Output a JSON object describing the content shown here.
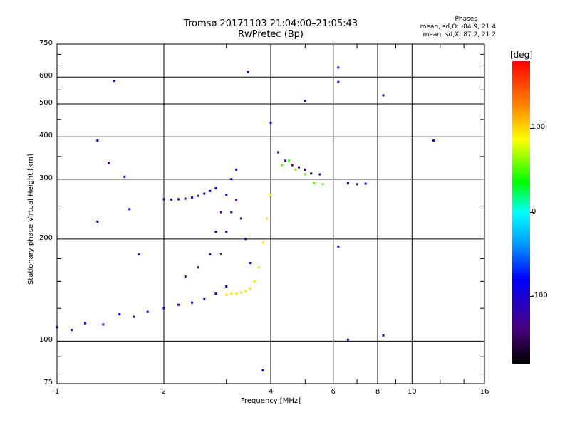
{
  "chart_data": {
    "type": "scatter",
    "title": "Tromsø 20171103 21:04:00–21:05:43",
    "subtitle": "RwPretec (Bp)",
    "xlabel": "Frequency [MHz]",
    "ylabel": "Stationary phase Virtual Height [km]",
    "x_scale": "log2",
    "y_scale": "log",
    "xlim": [
      1,
      16
    ],
    "ylim": [
      75,
      750
    ],
    "x_ticks": [
      "1",
      "2",
      "4",
      "6",
      "8",
      "10",
      "16"
    ],
    "x_tick_values": [
      1,
      2,
      4,
      6,
      8,
      10,
      16
    ],
    "y_ticks": [
      "75",
      "100",
      "200",
      "300",
      "400",
      "500",
      "600",
      "750"
    ],
    "y_tick_values": [
      75,
      100,
      200,
      300,
      400,
      500,
      600,
      750
    ],
    "grid": true,
    "colorbar": {
      "unit": "[deg]",
      "ticks": [
        "100",
        "0",
        "-100"
      ],
      "tick_values": [
        100,
        0,
        -100
      ],
      "range": [
        -180,
        180
      ]
    },
    "stats": {
      "header": "Phases",
      "line_o": "mean, sd,O: -84.9, 21.4",
      "line_x": "mean, sd,X: 87.2, 21.2"
    },
    "series": [
      {
        "trace": "low_blue",
        "x": [
          1.0,
          1.1,
          1.2,
          1.35,
          1.5,
          1.65,
          1.8,
          2.0,
          2.2,
          2.4,
          2.6,
          2.8,
          3.0
        ],
        "y": [
          110,
          108,
          113,
          112,
          120,
          118,
          122,
          125,
          128,
          130,
          133,
          138,
          145
        ],
        "phase": -95
      },
      {
        "trace": "o_mode_rise",
        "x": [
          2.3,
          2.5,
          2.7,
          2.8,
          2.9,
          3.0,
          3.1,
          3.2
        ],
        "y": [
          155,
          165,
          180,
          210,
          240,
          270,
          300,
          320
        ],
        "phase": -105
      },
      {
        "trace": "o_mode_cloud",
        "x": [
          2.9,
          3.0,
          3.1,
          3.2,
          3.3,
          3.4,
          3.5
        ],
        "y": [
          180,
          210,
          240,
          260,
          230,
          200,
          170
        ],
        "phase": -125
      },
      {
        "trace": "flat_f1",
        "x": [
          2.0,
          2.1,
          2.2,
          2.3,
          2.4,
          2.5,
          2.6,
          2.7,
          2.8
        ],
        "y": [
          262,
          261,
          262,
          263,
          265,
          268,
          272,
          277,
          282
        ],
        "phase": -100
      },
      {
        "trace": "x_mode_yellow",
        "x": [
          3.0,
          3.1,
          3.2,
          3.3,
          3.4,
          3.5,
          3.6,
          3.7,
          3.8,
          3.9,
          4.0
        ],
        "y": [
          137,
          138,
          138,
          139,
          140,
          143,
          150,
          165,
          195,
          230,
          270
        ],
        "phase": 95
      },
      {
        "trace": "x_f2_green",
        "x": [
          4.3,
          4.5,
          4.7,
          5.0,
          5.3,
          5.6
        ],
        "y": [
          330,
          340,
          320,
          310,
          292,
          290
        ],
        "phase": 55
      },
      {
        "trace": "o_f2_blue",
        "x": [
          4.2,
          4.4,
          4.6,
          4.8,
          5.0,
          5.2,
          5.5,
          6.6,
          7.0,
          7.4
        ],
        "y": [
          360,
          340,
          330,
          325,
          320,
          312,
          310,
          292,
          290,
          291
        ],
        "phase": -120
      },
      {
        "trace": "scattered",
        "x": [
          1.45,
          1.4,
          1.3,
          1.6,
          1.7,
          3.45,
          6.2,
          6.2,
          5.0,
          8.3,
          11.5,
          1.55,
          1.3,
          3.8,
          4.0,
          6.2,
          8.3,
          6.6
        ],
        "y": [
          585,
          335,
          225,
          245,
          180,
          620,
          640,
          580,
          510,
          530,
          390,
          305,
          390,
          82,
          440,
          190,
          104,
          101
        ],
        "phase": -90
      }
    ]
  }
}
